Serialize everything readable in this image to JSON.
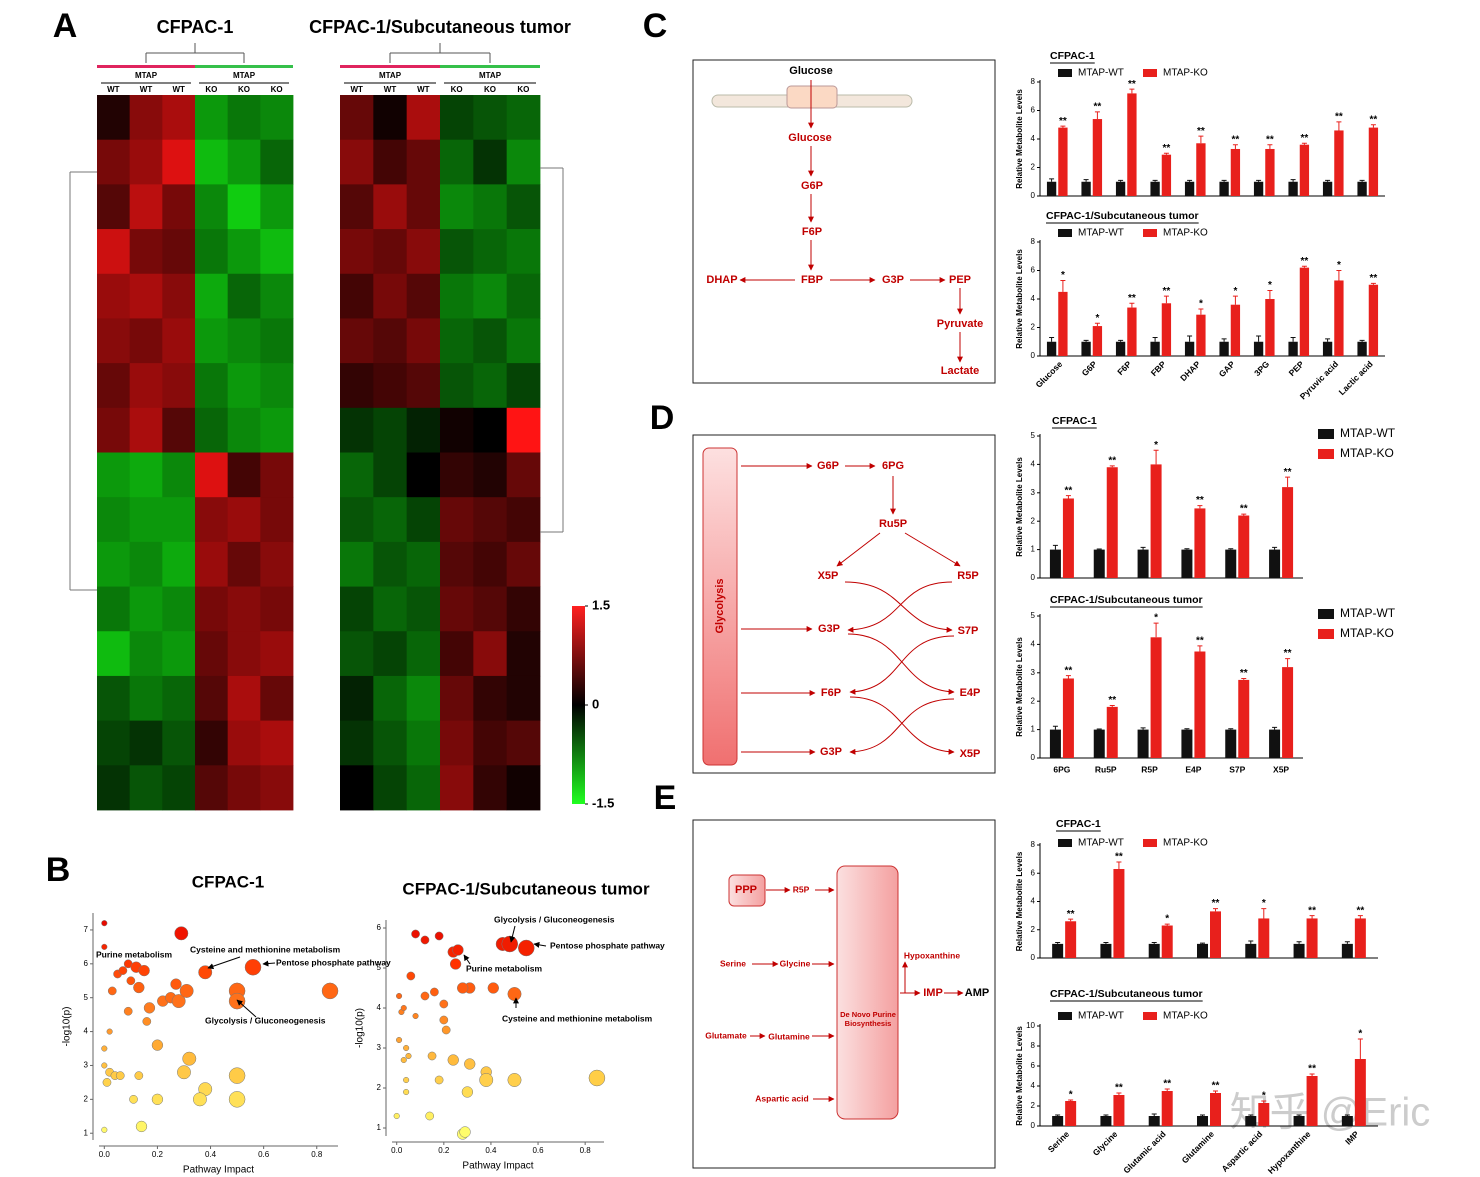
{
  "panels": [
    "A",
    "B",
    "C",
    "D",
    "E"
  ],
  "watermark": "知乎 @Eric",
  "diagrams": [
    {
      "nodes": [
        "Glucose",
        "Glucose",
        "G6P",
        "F6P",
        "FBP",
        "DHAP",
        "G3P",
        "PEP",
        "Pyruvate",
        "Lactate"
      ]
    },
    {
      "nodes": [
        "Glycolysis",
        "G6P",
        "6PG",
        "Ru5P",
        "X5P",
        "R5P",
        "G3P",
        "S7P",
        "F6P",
        "E4P",
        "G3P",
        "X5P"
      ]
    },
    {
      "nodes": [
        "PPP",
        "R5P",
        "Serine",
        "Glycine",
        "Glutamate",
        "Glutamine",
        "Aspartic acid",
        "De Novo Purine Biosynthesis",
        "Hypoxanthine",
        "IMP",
        "AMP"
      ]
    }
  ],
  "chart_data": [
    {
      "type": "heatmap",
      "title": "CFPAC-1",
      "groups": [
        "MTAP",
        "MTAP"
      ],
      "group_colors": [
        "#e0245e",
        "#35c04a"
      ],
      "columns": [
        "WT",
        "WT",
        "WT",
        "KO",
        "KO",
        "KO"
      ],
      "zlim": [
        -1.5,
        1.5
      ],
      "values": [
        [
          0.2,
          0.8,
          1.0,
          -0.9,
          -0.7,
          -0.8
        ],
        [
          0.7,
          0.9,
          1.3,
          -1.1,
          -0.9,
          -0.6
        ],
        [
          0.5,
          1.1,
          0.7,
          -0.8,
          -1.2,
          -0.9
        ],
        [
          1.2,
          0.7,
          0.6,
          -0.7,
          -0.9,
          -1.1
        ],
        [
          0.9,
          1.0,
          0.8,
          -1.0,
          -0.6,
          -0.8
        ],
        [
          0.8,
          0.7,
          0.9,
          -0.9,
          -0.8,
          -0.7
        ],
        [
          0.6,
          0.9,
          0.8,
          -0.7,
          -0.9,
          -0.8
        ],
        [
          0.7,
          1.0,
          0.5,
          -0.6,
          -0.8,
          -0.9
        ],
        [
          -0.9,
          -1.0,
          -0.8,
          1.3,
          0.4,
          0.7
        ],
        [
          -0.8,
          -0.9,
          -0.9,
          0.8,
          0.9,
          0.7
        ],
        [
          -0.9,
          -0.8,
          -1.0,
          0.9,
          0.6,
          0.8
        ],
        [
          -0.7,
          -0.9,
          -0.8,
          0.7,
          0.8,
          0.7
        ],
        [
          -1.1,
          -0.8,
          -0.9,
          0.6,
          0.8,
          0.9
        ],
        [
          -0.5,
          -0.7,
          -0.6,
          0.5,
          1.0,
          0.6
        ],
        [
          -0.4,
          -0.3,
          -0.5,
          0.3,
          0.9,
          1.0
        ],
        [
          -0.3,
          -0.5,
          -0.4,
          0.5,
          0.7,
          0.8
        ]
      ]
    },
    {
      "type": "heatmap",
      "title": "CFPAC-1/Subcutaneous tumor",
      "groups": [
        "MTAP",
        "MTAP"
      ],
      "group_colors": [
        "#e0245e",
        "#35c04a"
      ],
      "columns": [
        "WT",
        "WT",
        "WT",
        "KO",
        "KO",
        "KO"
      ],
      "zlim": [
        -1.5,
        1.5
      ],
      "zticks": [
        1.5,
        0,
        -1.5
      ],
      "values": [
        [
          0.6,
          0.1,
          1.0,
          -0.4,
          -0.5,
          -0.6
        ],
        [
          0.8,
          0.4,
          0.6,
          -0.6,
          -0.3,
          -0.8
        ],
        [
          0.5,
          0.9,
          0.6,
          -0.8,
          -0.7,
          -0.5
        ],
        [
          0.7,
          0.6,
          0.8,
          -0.5,
          -0.6,
          -0.7
        ],
        [
          0.4,
          0.7,
          0.5,
          -0.7,
          -0.8,
          -0.6
        ],
        [
          0.6,
          0.5,
          0.7,
          -0.6,
          -0.5,
          -0.7
        ],
        [
          0.3,
          0.4,
          0.5,
          -0.5,
          -0.6,
          -0.4
        ],
        [
          -0.3,
          -0.4,
          -0.2,
          0.1,
          0.0,
          1.5
        ],
        [
          -0.6,
          -0.4,
          0.0,
          0.3,
          0.2,
          0.6
        ],
        [
          -0.5,
          -0.6,
          -0.4,
          0.6,
          0.5,
          0.4
        ],
        [
          -0.7,
          -0.5,
          -0.6,
          0.5,
          0.4,
          0.6
        ],
        [
          -0.4,
          -0.6,
          -0.5,
          0.6,
          0.5,
          0.3
        ],
        [
          -0.5,
          -0.4,
          -0.6,
          0.4,
          0.8,
          0.2
        ],
        [
          -0.2,
          -0.6,
          -0.8,
          0.6,
          0.3,
          0.2
        ],
        [
          -0.3,
          -0.5,
          -0.7,
          0.7,
          0.4,
          0.5
        ],
        [
          0.0,
          -0.4,
          -0.6,
          0.8,
          0.3,
          0.1
        ]
      ]
    },
    {
      "type": "scatter",
      "title": "CFPAC-1",
      "xlabel": "Pathway Impact",
      "ylabel": "-log10(p)",
      "xlim": [
        -0.02,
        0.88
      ],
      "ylim": [
        0.8,
        7.5
      ],
      "xticks": [
        {
          "value": 0,
          "label": "0.0"
        },
        {
          "value": 0.2,
          "label": "0.2"
        },
        {
          "value": 0.4,
          "label": "0.4"
        },
        {
          "value": 0.6,
          "label": "0.6"
        },
        {
          "value": 0.8,
          "label": "0.8"
        }
      ],
      "yticks": [
        1,
        2,
        3,
        4,
        5,
        6,
        7
      ],
      "x": [
        0,
        0,
        0.03,
        0.05,
        0.07,
        0.09,
        0.1,
        0.12,
        0.13,
        0.15,
        0.17,
        0.22,
        0.25,
        0.27,
        0.28,
        0.29,
        0.31,
        0.38,
        0.5,
        0.5,
        0.56,
        0.85,
        0.09,
        0.02,
        0,
        0,
        0.02,
        0.04,
        0.06,
        0.01,
        0.2,
        0.32,
        0.3,
        0.38,
        0.5,
        0.5,
        0.2,
        0.36,
        0.11,
        0.14,
        0,
        0.13,
        0.16
      ],
      "y": [
        7.2,
        6.5,
        5.2,
        5.7,
        5.8,
        6.0,
        5.5,
        5.9,
        5.3,
        5.8,
        4.7,
        4.9,
        5.0,
        5.4,
        4.9,
        6.9,
        5.2,
        5.75,
        5.2,
        4.9,
        5.9,
        5.2,
        4.6,
        4.0,
        3.5,
        3.0,
        2.8,
        2.7,
        2.7,
        2.5,
        3.6,
        3.2,
        2.8,
        2.3,
        2.7,
        2.0,
        2.0,
        2.0,
        2.0,
        1.2,
        1.1,
        2.7,
        4.3
      ],
      "sizes": [
        1,
        1,
        2,
        2,
        2,
        2,
        2,
        3,
        3,
        3,
        3,
        3,
        3,
        3,
        4,
        4,
        4,
        4,
        5,
        5,
        5,
        5,
        2,
        1,
        1,
        1,
        2,
        2,
        2,
        2,
        3,
        4,
        4,
        4,
        5,
        5,
        3,
        4,
        2,
        3,
        1,
        2,
        2
      ],
      "annotations": [
        "Purine metabolism",
        "Cysteine and methionine metabolism",
        "Pentose phosphate pathway",
        "Glycolysis / Gluconeogenesis"
      ]
    },
    {
      "type": "scatter",
      "title": "CFPAC-1/Subcutaneous tumor",
      "xlabel": "Pathway Impact",
      "ylabel": "-log10(p)",
      "xlim": [
        -0.02,
        0.88
      ],
      "ylim": [
        0.8,
        6.2
      ],
      "xticks": [
        {
          "value": 0,
          "label": "0.0"
        },
        {
          "value": 0.2,
          "label": "0.2"
        },
        {
          "value": 0.4,
          "label": "0.4"
        },
        {
          "value": 0.6,
          "label": "0.6"
        },
        {
          "value": 0.8,
          "label": "0.8"
        }
      ],
      "yticks": [
        1,
        2,
        3,
        4,
        5,
        6
      ],
      "x": [
        0.08,
        0.12,
        0.18,
        0.24,
        0.25,
        0.26,
        0.45,
        0.48,
        0.55,
        0.5,
        0.31,
        0.41,
        0.06,
        0.12,
        0.16,
        0.28,
        0.2,
        0.01,
        0.02,
        0.03,
        0.08,
        0.2,
        0.21,
        0.01,
        0.04,
        0.05,
        0.03,
        0.15,
        0.24,
        0.38,
        0.31,
        0.04,
        0.04,
        0.18,
        0.38,
        0.5,
        0.85,
        0.3,
        0.14,
        0.28,
        0.29,
        0
      ],
      "y": [
        5.85,
        5.7,
        5.8,
        5.4,
        5.1,
        5.45,
        5.6,
        5.6,
        5.5,
        4.35,
        4.5,
        4.5,
        4.8,
        4.3,
        4.4,
        4.5,
        4.1,
        4.3,
        3.9,
        4.0,
        3.8,
        3.7,
        3.45,
        3.2,
        3.0,
        2.8,
        2.7,
        2.8,
        2.7,
        2.4,
        2.6,
        2.2,
        1.9,
        2.2,
        2.2,
        2.2,
        2.25,
        1.9,
        1.3,
        0.85,
        0.9,
        1.3
      ],
      "sizes": [
        2,
        2,
        2,
        3,
        3,
        3,
        4,
        5,
        5,
        4,
        3,
        3,
        2,
        2,
        2,
        3,
        2,
        1,
        1,
        1,
        1,
        2,
        2,
        1,
        1,
        1,
        1,
        2,
        3,
        3,
        3,
        1,
        1,
        2,
        4,
        4,
        5,
        3,
        2,
        3,
        3,
        1
      ],
      "annotations": [
        "Glycolysis / Gluconeogenesis",
        "Pentose phosphate pathway",
        "Purine metabolism",
        "Cysteine and methionine metabolism"
      ]
    },
    {
      "type": "bar",
      "title": "CFPAC-1",
      "ylabel": "Relative  Metabolite Levels",
      "ylim": [
        0,
        8
      ],
      "yticks": [
        0,
        2,
        4,
        6,
        8
      ],
      "legend": "top",
      "series": [
        {
          "name": "MTAP-WT",
          "color": "#111111",
          "values": [
            1,
            1,
            1,
            1,
            1,
            1,
            1,
            1,
            1,
            1
          ],
          "errors": [
            0.2,
            0.15,
            0.1,
            0.1,
            0.1,
            0.1,
            0.1,
            0.15,
            0.1,
            0.1
          ]
        },
        {
          "name": "MTAP-KO",
          "color": "#e8201c",
          "values": [
            4.8,
            5.4,
            7.2,
            2.9,
            3.7,
            3.3,
            3.3,
            3.6,
            4.6,
            4.8
          ],
          "errors": [
            0.1,
            0.5,
            0.3,
            0.1,
            0.5,
            0.3,
            0.3,
            0.1,
            0.6,
            0.2
          ]
        }
      ],
      "significance": [
        "**",
        "**",
        "**",
        "**",
        "**",
        "**",
        "**",
        "**",
        "**",
        "**"
      ]
    },
    {
      "type": "bar",
      "title": "CFPAC-1/Subcutaneous tumor",
      "ylabel": "Relative  Metabolite Levels",
      "ylim": [
        0,
        8
      ],
      "yticks": [
        0,
        2,
        4,
        6,
        8
      ],
      "legend": "top",
      "category_label_angle": -45,
      "categories": [
        "Glucose",
        "G6P",
        "F6P",
        "FBP",
        "DHAP",
        "GAP",
        "3PG",
        "PEP",
        "Pyruvic acid",
        "Lactic acid"
      ],
      "series": [
        {
          "name": "MTAP-WT",
          "color": "#111111",
          "values": [
            1,
            1,
            1,
            1,
            1,
            1,
            1,
            1,
            1,
            1
          ],
          "errors": [
            0.3,
            0.1,
            0.1,
            0.3,
            0.4,
            0.2,
            0.4,
            0.3,
            0.2,
            0.1
          ]
        },
        {
          "name": "MTAP-KO",
          "color": "#e8201c",
          "values": [
            4.5,
            2.1,
            3.4,
            3.7,
            2.9,
            3.6,
            4.0,
            6.2,
            5.3,
            5.0
          ],
          "errors": [
            0.8,
            0.2,
            0.3,
            0.5,
            0.4,
            0.6,
            0.6,
            0.1,
            0.7,
            0.1
          ]
        }
      ],
      "significance": [
        "*",
        "*",
        "**",
        "**",
        "*",
        "*",
        "*",
        "**",
        "*",
        "**"
      ]
    },
    {
      "type": "bar",
      "title": "CFPAC-1",
      "ylabel": "Relative  Metabolite Levels",
      "ylim": [
        0,
        5
      ],
      "yticks": [
        0,
        1,
        2,
        3,
        4,
        5
      ],
      "legend": "right",
      "series": [
        {
          "name": "MTAP-WT",
          "color": "#111111",
          "values": [
            1,
            1,
            1,
            1,
            1,
            1
          ],
          "errors": [
            0.15,
            0.02,
            0.08,
            0.03,
            0.03,
            0.08
          ]
        },
        {
          "name": "MTAP-KO",
          "color": "#e8201c",
          "values": [
            2.8,
            3.9,
            4.0,
            2.45,
            2.2,
            3.2
          ],
          "errors": [
            0.1,
            0.05,
            0.5,
            0.1,
            0.05,
            0.35
          ]
        }
      ],
      "significance": [
        "**",
        "**",
        "*",
        "**",
        "**",
        "**"
      ]
    },
    {
      "type": "bar",
      "title": "CFPAC-1/Subcutaneous tumor",
      "ylabel": "Relative  Metabolite Levels",
      "ylim": [
        0,
        5
      ],
      "yticks": [
        0,
        1,
        2,
        3,
        4,
        5
      ],
      "legend": "right",
      "category_label_angle": 0,
      "categories": [
        "6PG",
        "Ru5P",
        "R5P",
        "E4P",
        "S7P",
        "X5P"
      ],
      "series": [
        {
          "name": "MTAP-WT",
          "color": "#111111",
          "values": [
            1,
            1,
            1,
            1,
            1,
            1
          ],
          "errors": [
            0.12,
            0.02,
            0.06,
            0.03,
            0.03,
            0.08
          ]
        },
        {
          "name": "MTAP-KO",
          "color": "#e8201c",
          "values": [
            2.8,
            1.8,
            4.25,
            3.75,
            2.75,
            3.2
          ],
          "errors": [
            0.1,
            0.05,
            0.5,
            0.2,
            0.05,
            0.3
          ]
        }
      ],
      "significance": [
        "**",
        "**",
        "*",
        "**",
        "**",
        "**"
      ]
    },
    {
      "type": "bar",
      "title": "CFPAC-1",
      "ylabel": "Relative  Metabolite Levels",
      "ylim": [
        0,
        8
      ],
      "yticks": [
        0,
        2,
        4,
        6,
        8
      ],
      "legend": "top",
      "series": [
        {
          "name": "MTAP-WT",
          "color": "#111111",
          "values": [
            1,
            1,
            1,
            1,
            1,
            1,
            1
          ],
          "errors": [
            0.1,
            0.1,
            0.1,
            0.05,
            0.2,
            0.15,
            0.15
          ]
        },
        {
          "name": "MTAP-KO",
          "color": "#e8201c",
          "values": [
            2.6,
            6.3,
            2.3,
            3.3,
            2.8,
            2.8,
            2.8
          ],
          "errors": [
            0.15,
            0.5,
            0.1,
            0.2,
            0.7,
            0.2,
            0.2
          ]
        }
      ],
      "significance": [
        "**",
        "**",
        "*",
        "**",
        "*",
        "**",
        "**"
      ]
    },
    {
      "type": "bar",
      "title": "CFPAC-1/Subcutaneous tumor",
      "ylabel": "Relative  Metabolite Levels",
      "ylim": [
        0,
        10
      ],
      "yticks": [
        0,
        2,
        4,
        6,
        8,
        10
      ],
      "legend": "top",
      "category_label_angle": -45,
      "categories": [
        "Serine",
        "Glycine",
        "Glutamic acid",
        "Glutamine",
        "Aspartic acid",
        "Hypoxanthine",
        "IMP"
      ],
      "series": [
        {
          "name": "MTAP-WT",
          "color": "#111111",
          "values": [
            1,
            1,
            1,
            1,
            1,
            1,
            1
          ],
          "errors": [
            0.1,
            0.1,
            0.2,
            0.1,
            0.1,
            0.1,
            0.1
          ]
        },
        {
          "name": "MTAP-KO",
          "color": "#e8201c",
          "values": [
            2.5,
            3.1,
            3.5,
            3.3,
            2.3,
            5.0,
            6.7
          ],
          "errors": [
            0.1,
            0.2,
            0.2,
            0.2,
            0.2,
            0.2,
            2.0
          ]
        }
      ],
      "significance": [
        "*",
        "**",
        "**",
        "**",
        "*",
        "**",
        "*"
      ]
    }
  ]
}
